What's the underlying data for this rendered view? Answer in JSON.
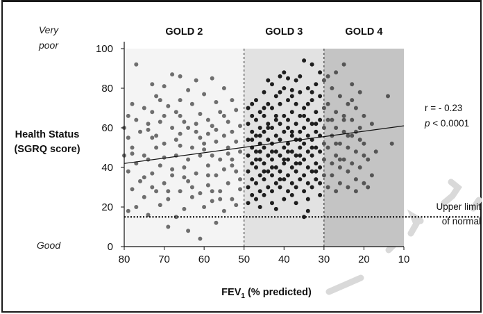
{
  "chart_data": {
    "type": "scatter",
    "xlabel_main": "FEV",
    "xlabel_sub": "1",
    "xlabel_rest": " (% predicted)",
    "ylabel_line1": "Health Status",
    "ylabel_line2": "(SGRQ score)",
    "x_reversed": true,
    "xlim": [
      80,
      10
    ],
    "ylim": [
      0,
      100
    ],
    "x_ticks": [
      "80",
      "70",
      "60",
      "50",
      "40",
      "30",
      "20",
      "10"
    ],
    "y_ticks": [
      "0",
      "20",
      "40",
      "60",
      "80",
      "100"
    ],
    "y_top_label_line1": "Very",
    "y_top_label_line2": "poor",
    "y_bottom_label": "Good",
    "regions": [
      {
        "name": "GOLD 2",
        "from": 80,
        "to": 50,
        "color": "#f4f4f4"
      },
      {
        "name": "GOLD 3",
        "from": 50,
        "to": 30,
        "color": "#e2e2e2"
      },
      {
        "name": "GOLD 4",
        "from": 30,
        "to": 10,
        "color": "#c4c4c4"
      }
    ],
    "correlation": "r = - 0.23",
    "p_label": "p",
    "p_value": " < 0.0001",
    "upper_limit_line1": "Upper limit",
    "upper_limit_line2": "of normal",
    "upper_limit_value": 15,
    "regression": {
      "x1": 80,
      "y1": 42,
      "x2": 10,
      "y2": 61
    },
    "grid": false,
    "legend": "none",
    "colors": {
      "gold2_points": "#6e6e6e",
      "gold3_points": "#1e1e1e",
      "gold4_points": "#555555"
    },
    "points": [
      [
        77,
        92
      ],
      [
        68,
        87
      ],
      [
        66,
        86
      ],
      [
        62,
        84
      ],
      [
        73,
        82
      ],
      [
        70,
        81
      ],
      [
        58,
        85
      ],
      [
        55,
        80
      ],
      [
        64,
        79
      ],
      [
        72,
        76
      ],
      [
        60,
        77
      ],
      [
        66,
        74
      ],
      [
        78,
        72
      ],
      [
        75,
        70
      ],
      [
        69,
        71
      ],
      [
        63,
        72
      ],
      [
        57,
        73
      ],
      [
        53,
        74
      ],
      [
        79,
        66
      ],
      [
        73,
        68
      ],
      [
        67,
        68
      ],
      [
        61,
        67
      ],
      [
        56,
        68
      ],
      [
        52,
        69
      ],
      [
        77,
        64
      ],
      [
        71,
        63
      ],
      [
        65,
        63
      ],
      [
        59,
        64
      ],
      [
        54,
        63
      ],
      [
        80,
        60
      ],
      [
        74,
        59
      ],
      [
        68,
        60
      ],
      [
        62,
        58
      ],
      [
        57,
        59
      ],
      [
        51,
        61
      ],
      [
        79,
        55
      ],
      [
        73,
        55
      ],
      [
        67,
        54
      ],
      [
        61,
        55
      ],
      [
        55,
        56
      ],
      [
        52,
        53
      ],
      [
        78,
        50
      ],
      [
        72,
        50
      ],
      [
        66,
        51
      ],
      [
        60,
        49
      ],
      [
        54,
        50
      ],
      [
        51,
        48
      ],
      [
        80,
        46
      ],
      [
        75,
        46
      ],
      [
        70,
        45
      ],
      [
        64,
        44
      ],
      [
        58,
        46
      ],
      [
        53,
        44
      ],
      [
        77,
        42
      ],
      [
        71,
        41
      ],
      [
        65,
        40
      ],
      [
        59,
        41
      ],
      [
        55,
        39
      ],
      [
        79,
        38
      ],
      [
        73,
        37
      ],
      [
        68,
        36
      ],
      [
        62,
        37
      ],
      [
        57,
        36
      ],
      [
        52,
        38
      ],
      [
        76,
        33
      ],
      [
        70,
        32
      ],
      [
        64,
        33
      ],
      [
        59,
        31
      ],
      [
        54,
        32
      ],
      [
        78,
        29
      ],
      [
        72,
        28
      ],
      [
        66,
        28
      ],
      [
        61,
        27
      ],
      [
        56,
        28
      ],
      [
        51,
        29
      ],
      [
        75,
        25
      ],
      [
        69,
        24
      ],
      [
        63,
        25
      ],
      [
        58,
        23
      ],
      [
        53,
        24
      ],
      [
        77,
        20
      ],
      [
        71,
        21
      ],
      [
        65,
        19
      ],
      [
        60,
        20
      ],
      [
        55,
        18
      ],
      [
        79,
        18
      ],
      [
        67,
        15
      ],
      [
        74,
        16
      ],
      [
        69,
        10
      ],
      [
        64,
        8
      ],
      [
        61,
        4
      ],
      [
        57,
        12
      ],
      [
        72,
        56
      ],
      [
        63,
        50
      ],
      [
        58,
        61
      ],
      [
        67,
        46
      ],
      [
        56,
        44
      ],
      [
        70,
        66
      ],
      [
        61,
        46
      ],
      [
        76,
        58
      ],
      [
        66,
        57
      ],
      [
        74,
        44
      ],
      [
        68,
        39
      ],
      [
        62,
        62
      ],
      [
        57,
        53
      ],
      [
        53,
        58
      ],
      [
        54,
        47
      ],
      [
        59,
        36
      ],
      [
        73,
        30
      ],
      [
        65,
        35
      ],
      [
        56,
        24
      ],
      [
        52,
        21
      ],
      [
        78,
        47
      ],
      [
        74,
        62
      ],
      [
        70,
        52
      ],
      [
        64,
        60
      ],
      [
        60,
        52
      ],
      [
        58,
        28
      ],
      [
        69,
        28
      ],
      [
        75,
        35
      ],
      [
        63,
        30
      ],
      [
        51,
        34
      ],
      [
        55,
        66
      ],
      [
        66,
        66
      ],
      [
        71,
        74
      ],
      [
        59,
        57
      ],
      [
        53,
        41
      ],
      [
        49,
        70
      ],
      [
        47,
        74
      ],
      [
        45,
        78
      ],
      [
        43,
        82
      ],
      [
        41,
        86
      ],
      [
        39,
        85
      ],
      [
        37,
        84
      ],
      [
        35,
        94
      ],
      [
        33,
        92
      ],
      [
        31,
        88
      ],
      [
        48,
        66
      ],
      [
        46,
        68
      ],
      [
        44,
        72
      ],
      [
        42,
        76
      ],
      [
        40,
        80
      ],
      [
        38,
        79
      ],
      [
        36,
        78
      ],
      [
        34,
        80
      ],
      [
        32,
        82
      ],
      [
        30,
        84
      ],
      [
        49,
        62
      ],
      [
        47,
        64
      ],
      [
        45,
        66
      ],
      [
        43,
        70
      ],
      [
        41,
        72
      ],
      [
        39,
        74
      ],
      [
        37,
        72
      ],
      [
        35,
        70
      ],
      [
        33,
        74
      ],
      [
        31,
        76
      ],
      [
        48,
        58
      ],
      [
        46,
        60
      ],
      [
        44,
        62
      ],
      [
        42,
        64
      ],
      [
        40,
        66
      ],
      [
        38,
        68
      ],
      [
        36,
        66
      ],
      [
        34,
        64
      ],
      [
        32,
        68
      ],
      [
        30,
        70
      ],
      [
        49,
        54
      ],
      [
        47,
        56
      ],
      [
        45,
        58
      ],
      [
        43,
        60
      ],
      [
        41,
        62
      ],
      [
        39,
        60
      ],
      [
        37,
        62
      ],
      [
        35,
        60
      ],
      [
        33,
        62
      ],
      [
        31,
        64
      ],
      [
        48,
        50
      ],
      [
        46,
        52
      ],
      [
        44,
        54
      ],
      [
        42,
        56
      ],
      [
        40,
        58
      ],
      [
        38,
        56
      ],
      [
        36,
        58
      ],
      [
        34,
        56
      ],
      [
        32,
        58
      ],
      [
        30,
        60
      ],
      [
        49,
        46
      ],
      [
        47,
        48
      ],
      [
        45,
        50
      ],
      [
        43,
        52
      ],
      [
        41,
        54
      ],
      [
        39,
        52
      ],
      [
        37,
        54
      ],
      [
        35,
        52
      ],
      [
        33,
        54
      ],
      [
        31,
        56
      ],
      [
        48,
        42
      ],
      [
        46,
        44
      ],
      [
        44,
        46
      ],
      [
        42,
        48
      ],
      [
        40,
        50
      ],
      [
        38,
        48
      ],
      [
        36,
        50
      ],
      [
        34,
        48
      ],
      [
        32,
        50
      ],
      [
        30,
        52
      ],
      [
        49,
        38
      ],
      [
        47,
        40
      ],
      [
        45,
        42
      ],
      [
        43,
        44
      ],
      [
        41,
        46
      ],
      [
        39,
        44
      ],
      [
        37,
        46
      ],
      [
        35,
        44
      ],
      [
        33,
        46
      ],
      [
        31,
        48
      ],
      [
        48,
        34
      ],
      [
        46,
        36
      ],
      [
        44,
        38
      ],
      [
        42,
        40
      ],
      [
        40,
        42
      ],
      [
        38,
        40
      ],
      [
        36,
        42
      ],
      [
        34,
        40
      ],
      [
        32,
        42
      ],
      [
        30,
        44
      ],
      [
        49,
        30
      ],
      [
        47,
        32
      ],
      [
        45,
        34
      ],
      [
        43,
        36
      ],
      [
        41,
        38
      ],
      [
        39,
        36
      ],
      [
        37,
        38
      ],
      [
        35,
        36
      ],
      [
        33,
        38
      ],
      [
        31,
        40
      ],
      [
        48,
        26
      ],
      [
        46,
        28
      ],
      [
        44,
        30
      ],
      [
        42,
        32
      ],
      [
        40,
        34
      ],
      [
        38,
        32
      ],
      [
        36,
        34
      ],
      [
        34,
        32
      ],
      [
        32,
        34
      ],
      [
        30,
        36
      ],
      [
        49,
        22
      ],
      [
        47,
        24
      ],
      [
        45,
        26
      ],
      [
        43,
        28
      ],
      [
        41,
        30
      ],
      [
        39,
        28
      ],
      [
        37,
        30
      ],
      [
        35,
        28
      ],
      [
        33,
        30
      ],
      [
        31,
        32
      ],
      [
        46,
        20
      ],
      [
        43,
        22
      ],
      [
        40,
        24
      ],
      [
        37,
        22
      ],
      [
        34,
        18
      ],
      [
        35,
        15
      ],
      [
        42,
        19
      ],
      [
        48,
        72
      ],
      [
        44,
        84
      ],
      [
        40,
        88
      ],
      [
        36,
        86
      ],
      [
        33,
        78
      ],
      [
        46,
        56
      ],
      [
        43,
        48
      ],
      [
        39,
        64
      ],
      [
        36,
        46
      ],
      [
        32,
        38
      ],
      [
        45,
        38
      ],
      [
        41,
        34
      ],
      [
        38,
        26
      ],
      [
        34,
        24
      ],
      [
        31,
        26
      ],
      [
        47,
        44
      ],
      [
        44,
        60
      ],
      [
        42,
        66
      ],
      [
        38,
        58
      ],
      [
        35,
        66
      ],
      [
        33,
        50
      ],
      [
        37,
        42
      ],
      [
        40,
        44
      ],
      [
        43,
        40
      ],
      [
        46,
        48
      ],
      [
        48,
        54
      ],
      [
        39,
        48
      ],
      [
        36,
        54
      ],
      [
        32,
        62
      ],
      [
        34,
        72
      ],
      [
        41,
        78
      ],
      [
        45,
        70
      ],
      [
        38,
        76
      ],
      [
        29,
        86
      ],
      [
        27,
        88
      ],
      [
        25,
        92
      ],
      [
        23,
        82
      ],
      [
        21,
        78
      ],
      [
        14,
        76
      ],
      [
        28,
        80
      ],
      [
        26,
        76
      ],
      [
        24,
        72
      ],
      [
        22,
        70
      ],
      [
        29,
        72
      ],
      [
        27,
        68
      ],
      [
        25,
        66
      ],
      [
        23,
        64
      ],
      [
        20,
        66
      ],
      [
        29,
        64
      ],
      [
        27,
        60
      ],
      [
        25,
        58
      ],
      [
        23,
        56
      ],
      [
        21,
        60
      ],
      [
        18,
        62
      ],
      [
        28,
        56
      ],
      [
        26,
        52
      ],
      [
        24,
        50
      ],
      [
        22,
        48
      ],
      [
        20,
        46
      ],
      [
        17,
        48
      ],
      [
        29,
        50
      ],
      [
        27,
        46
      ],
      [
        25,
        44
      ],
      [
        23,
        42
      ],
      [
        21,
        40
      ],
      [
        18,
        36
      ],
      [
        28,
        42
      ],
      [
        26,
        40
      ],
      [
        24,
        38
      ],
      [
        22,
        34
      ],
      [
        20,
        32
      ],
      [
        28,
        36
      ],
      [
        26,
        32
      ],
      [
        24,
        30
      ],
      [
        22,
        28
      ],
      [
        19,
        30
      ],
      [
        29,
        30
      ],
      [
        27,
        28
      ],
      [
        13,
        52
      ],
      [
        25,
        64
      ],
      [
        23,
        74
      ],
      [
        21,
        54
      ],
      [
        19,
        44
      ],
      [
        24,
        56
      ],
      [
        27,
        52
      ],
      [
        26,
        44
      ],
      [
        22,
        58
      ],
      [
        28,
        64
      ],
      [
        20,
        52
      ]
    ]
  }
}
